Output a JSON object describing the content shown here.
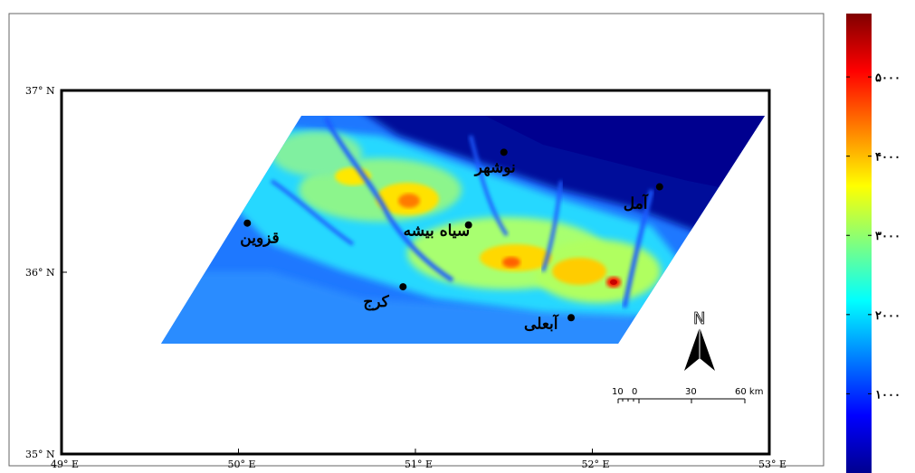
{
  "longitude_ticks": [
    {
      "label": "49° E",
      "lon": 49
    },
    {
      "label": "50° E",
      "lon": 50
    },
    {
      "label": "51° E",
      "lon": 51
    },
    {
      "label": "52° E",
      "lon": 52
    },
    {
      "label": "53° E",
      "lon": 53
    }
  ],
  "latitude_ticks": [
    {
      "label": "37° N",
      "lat": 37
    },
    {
      "label": "36° N",
      "lat": 36
    },
    {
      "label": "35° N",
      "lat": 35
    }
  ],
  "cities": [
    {
      "name": "نوشهر",
      "lon": 51.5,
      "lat": 36.66
    },
    {
      "name": "آمل",
      "lon": 52.38,
      "lat": 36.47
    },
    {
      "name": "سیاه بیشه",
      "lon": 51.3,
      "lat": 36.26
    },
    {
      "name": "قزوین",
      "lon": 50.05,
      "lat": 36.27
    },
    {
      "name": "کرج",
      "lon": 50.93,
      "lat": 35.92
    },
    {
      "name": "آبعلی",
      "lon": 51.88,
      "lat": 35.75
    }
  ],
  "colorbar": {
    "labels": [
      {
        "text": "۵۰۰۰",
        "value": 5000
      },
      {
        "text": "۴۰۰۰",
        "value": 4000
      },
      {
        "text": "۳۰۰۰",
        "value": 3000
      },
      {
        "text": "۲۰۰۰",
        "value": 2000
      },
      {
        "text": "۱۰۰۰",
        "value": 1000
      }
    ],
    "min": 0,
    "max": 5800,
    "colormap": "jet"
  },
  "north_arrow": {
    "label": "N"
  },
  "scale_bar": {
    "labels": [
      "10",
      "0",
      "30",
      "60 km"
    ]
  },
  "colors": {
    "frame": "#000000",
    "dem_low": "#00008f",
    "dem_high": "#800000"
  }
}
